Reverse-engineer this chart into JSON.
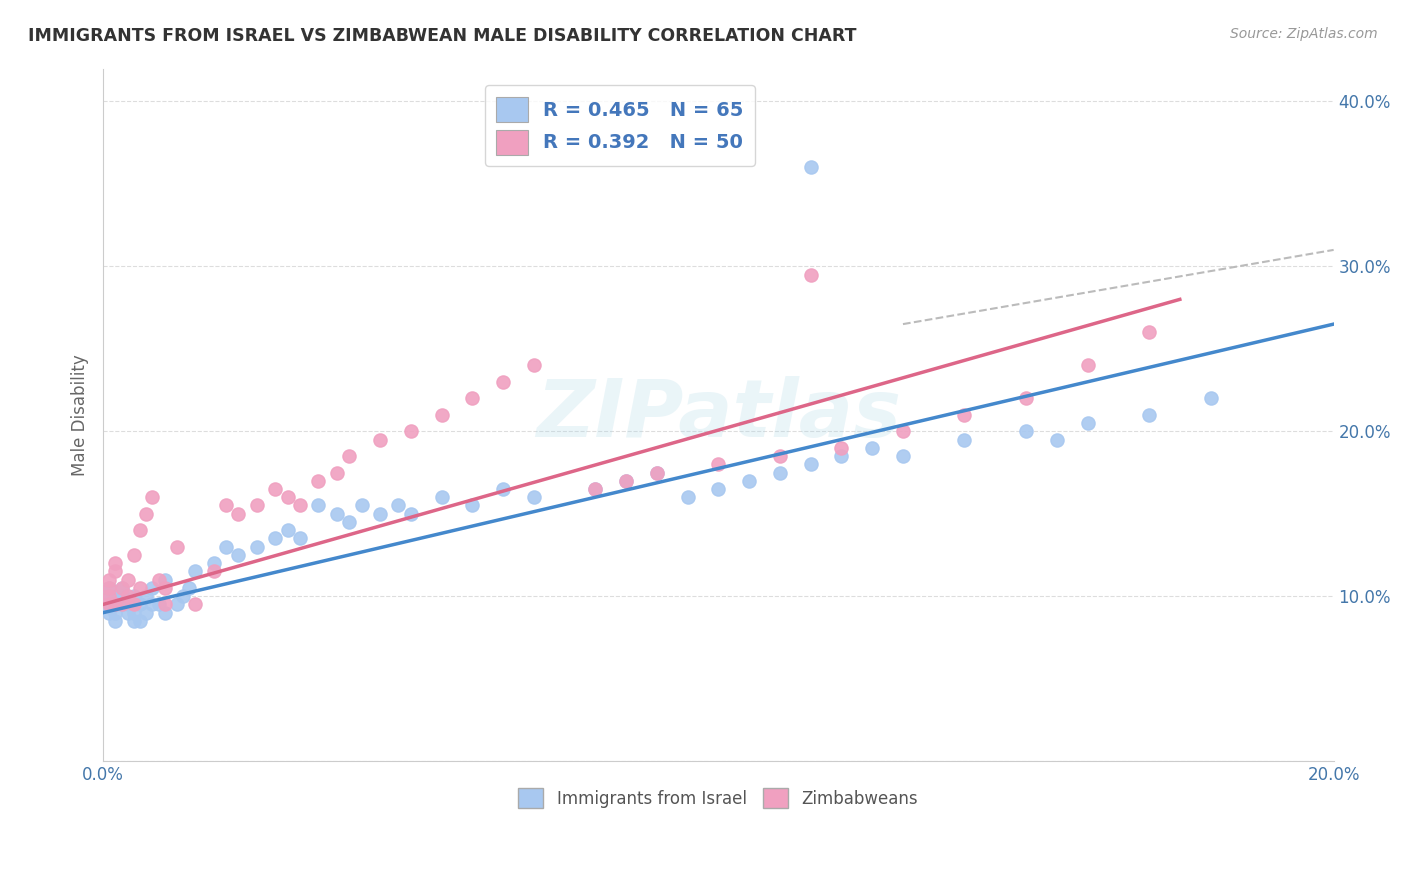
{
  "title": "IMMIGRANTS FROM ISRAEL VS ZIMBABWEAN MALE DISABILITY CORRELATION CHART",
  "source_text": "Source: ZipAtlas.com",
  "ylabel": "Male Disability",
  "watermark": "ZIPatlas",
  "legend_r1": "R = 0.465",
  "legend_n1": "N = 65",
  "legend_r2": "R = 0.392",
  "legend_n2": "N = 50",
  "legend_label1": "Immigrants from Israel",
  "legend_label2": "Zimbabweans",
  "color_blue": "#A8C8F0",
  "color_pink": "#F0A0C0",
  "line_blue": "#4488CC",
  "line_pink": "#DD6688",
  "xlim": [
    0.0,
    0.2
  ],
  "ylim": [
    0.0,
    0.42
  ],
  "blue_x": [
    0.001,
    0.001,
    0.001,
    0.001,
    0.002,
    0.002,
    0.002,
    0.002,
    0.003,
    0.003,
    0.003,
    0.004,
    0.004,
    0.005,
    0.005,
    0.005,
    0.006,
    0.006,
    0.007,
    0.007,
    0.008,
    0.008,
    0.009,
    0.01,
    0.01,
    0.012,
    0.013,
    0.014,
    0.015,
    0.018,
    0.02,
    0.022,
    0.025,
    0.028,
    0.03,
    0.032,
    0.035,
    0.038,
    0.04,
    0.042,
    0.045,
    0.048,
    0.05,
    0.055,
    0.06,
    0.065,
    0.07,
    0.08,
    0.085,
    0.09,
    0.095,
    0.1,
    0.105,
    0.11,
    0.115,
    0.12,
    0.125,
    0.13,
    0.14,
    0.15,
    0.155,
    0.16,
    0.17,
    0.18,
    0.115
  ],
  "blue_y": [
    0.09,
    0.095,
    0.1,
    0.105,
    0.085,
    0.09,
    0.095,
    0.1,
    0.095,
    0.1,
    0.105,
    0.09,
    0.095,
    0.085,
    0.09,
    0.1,
    0.085,
    0.095,
    0.09,
    0.1,
    0.095,
    0.105,
    0.095,
    0.09,
    0.11,
    0.095,
    0.1,
    0.105,
    0.115,
    0.12,
    0.13,
    0.125,
    0.13,
    0.135,
    0.14,
    0.135,
    0.155,
    0.15,
    0.145,
    0.155,
    0.15,
    0.155,
    0.15,
    0.16,
    0.155,
    0.165,
    0.16,
    0.165,
    0.17,
    0.175,
    0.16,
    0.165,
    0.17,
    0.175,
    0.18,
    0.185,
    0.19,
    0.185,
    0.195,
    0.2,
    0.195,
    0.205,
    0.21,
    0.22,
    0.36
  ],
  "pink_x": [
    0.001,
    0.001,
    0.001,
    0.001,
    0.002,
    0.002,
    0.002,
    0.003,
    0.003,
    0.004,
    0.004,
    0.005,
    0.005,
    0.006,
    0.006,
    0.007,
    0.008,
    0.009,
    0.01,
    0.01,
    0.012,
    0.015,
    0.018,
    0.02,
    0.022,
    0.025,
    0.028,
    0.03,
    0.032,
    0.035,
    0.038,
    0.04,
    0.045,
    0.05,
    0.055,
    0.06,
    0.065,
    0.07,
    0.08,
    0.085,
    0.09,
    0.1,
    0.11,
    0.12,
    0.13,
    0.14,
    0.15,
    0.16,
    0.17,
    0.115
  ],
  "pink_y": [
    0.095,
    0.1,
    0.105,
    0.11,
    0.095,
    0.115,
    0.12,
    0.095,
    0.105,
    0.1,
    0.11,
    0.095,
    0.125,
    0.105,
    0.14,
    0.15,
    0.16,
    0.11,
    0.095,
    0.105,
    0.13,
    0.095,
    0.115,
    0.155,
    0.15,
    0.155,
    0.165,
    0.16,
    0.155,
    0.17,
    0.175,
    0.185,
    0.195,
    0.2,
    0.21,
    0.22,
    0.23,
    0.24,
    0.165,
    0.17,
    0.175,
    0.18,
    0.185,
    0.19,
    0.2,
    0.21,
    0.22,
    0.24,
    0.26,
    0.295
  ],
  "blue_line_x": [
    0.0,
    0.2
  ],
  "blue_line_y": [
    0.09,
    0.265
  ],
  "pink_line_x": [
    0.0,
    0.175
  ],
  "pink_line_y": [
    0.095,
    0.28
  ],
  "dash_line_x": [
    0.13,
    0.2
  ],
  "dash_line_y": [
    0.265,
    0.31
  ]
}
